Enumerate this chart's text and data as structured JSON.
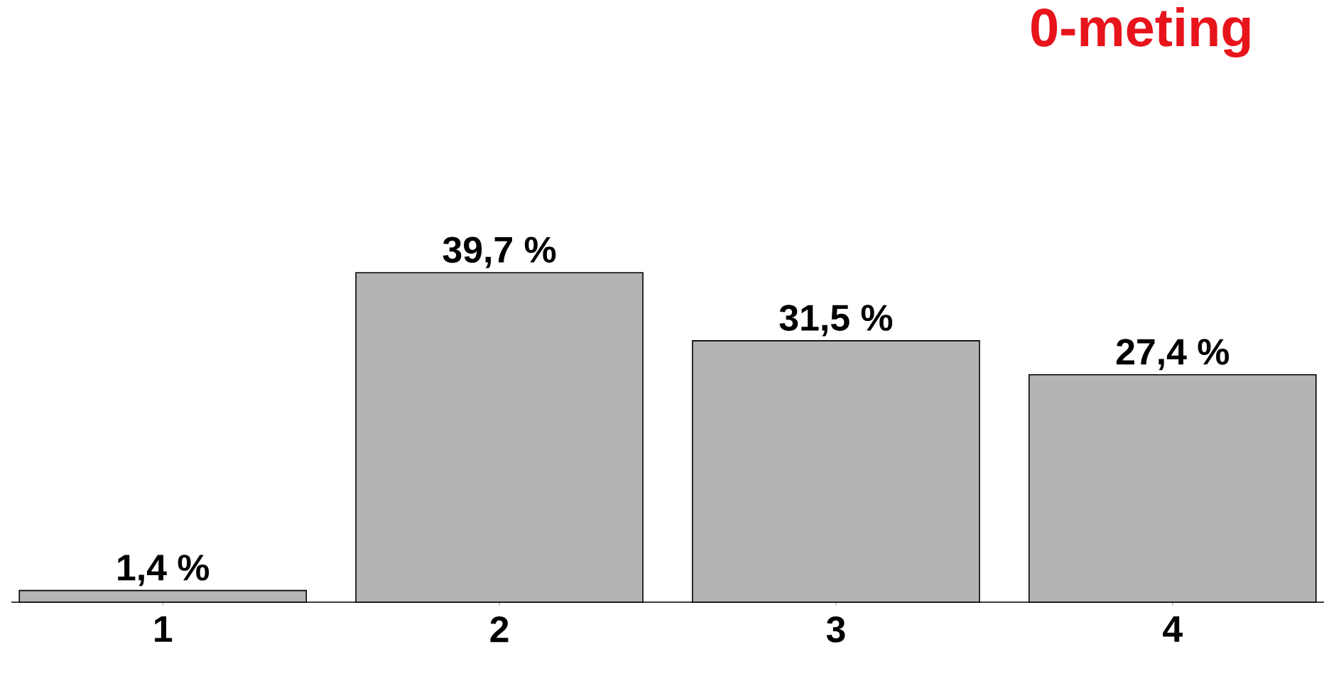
{
  "chart_data": {
    "type": "bar",
    "title": "0-meting",
    "categories": [
      "1",
      "2",
      "3",
      "4"
    ],
    "values": [
      1.4,
      39.7,
      31.5,
      27.4
    ],
    "value_labels": [
      "1,4 %",
      "39,7 %",
      "31,5 %",
      "27,4 %"
    ],
    "color": "#b4b4b4"
  }
}
